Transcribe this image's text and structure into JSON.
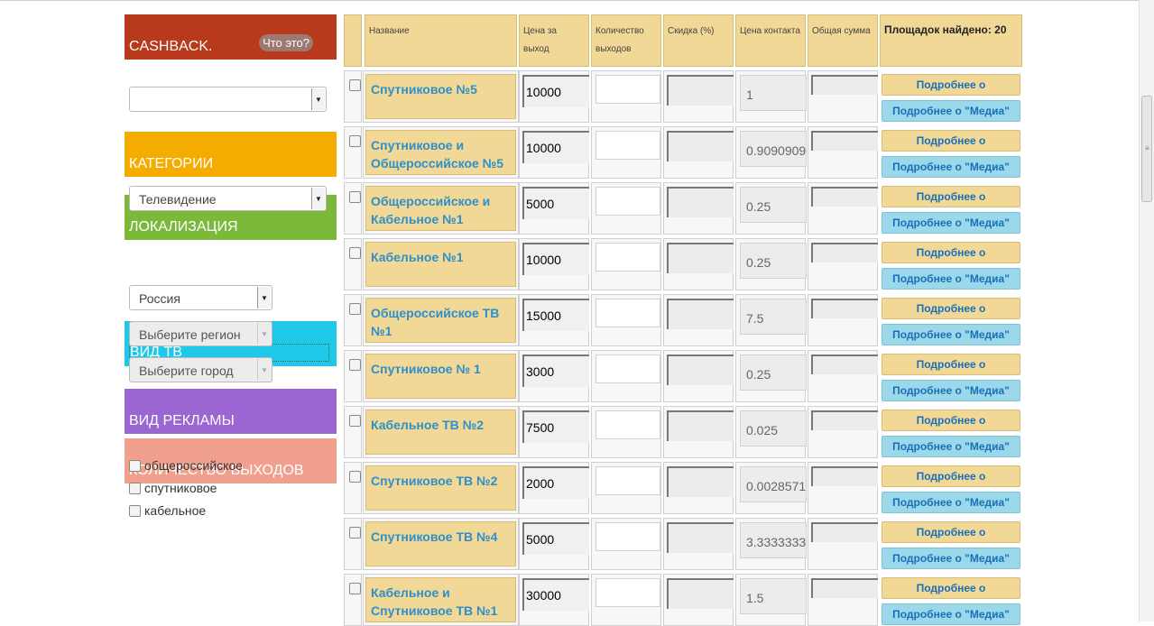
{
  "sidebar": {
    "cashback": {
      "title": "CASHBACK.",
      "what_btn": "Что это?"
    },
    "cashback_select": "",
    "categories": {
      "title": "КАТЕГОРИИ",
      "selected": "Телевидение"
    },
    "localization": {
      "title": "ЛОКАЛИЗАЦИЯ",
      "country": "Россия",
      "region": "Выберите регион",
      "city": "Выберите город"
    },
    "tv_type": {
      "title": "ВИД ТВ",
      "options": [
        "общероссийское",
        "спутниковое",
        "кабельное"
      ]
    },
    "ad_type": {
      "title": "ВИД РЕКЛАМЫ"
    },
    "count": {
      "title": "КОЛИЧЕСТВО ВЫХОДОВ"
    }
  },
  "table": {
    "headers": {
      "name": "Название",
      "price": "Цена за выход",
      "qty": "Количество выходов",
      "discount": "Скидка (%)",
      "contact": "Цена контакта",
      "total": "Общая сумма",
      "found": "Площадок найдено: 20"
    },
    "btn_platform": "Подробнее о \"Площадке\"",
    "btn_media": "Подробнее о \"Медиа\"",
    "rows": [
      {
        "name": "Спутниковое №5",
        "price": "10000",
        "qty": "",
        "discount": "",
        "contact": "1",
        "total": ""
      },
      {
        "name": "Спутниковое и Общероссийское №5",
        "price": "10000",
        "qty": "",
        "discount": "",
        "contact": "0.9090909",
        "total": ""
      },
      {
        "name": "Общероссийское и Кабельное №1",
        "price": "5000",
        "qty": "",
        "discount": "",
        "contact": "0.25",
        "total": ""
      },
      {
        "name": "Кабельное №1",
        "price": "10000",
        "qty": "",
        "discount": "",
        "contact": "0.25",
        "total": ""
      },
      {
        "name": "Общероссийское ТВ №1",
        "price": "15000",
        "qty": "",
        "discount": "",
        "contact": "7.5",
        "total": ""
      },
      {
        "name": "Спутниковое № 1",
        "price": "3000",
        "qty": "",
        "discount": "",
        "contact": "0.25",
        "total": ""
      },
      {
        "name": "Кабельное ТВ №2",
        "price": "7500",
        "qty": "",
        "discount": "",
        "contact": "0.025",
        "total": ""
      },
      {
        "name": "Спутниковое ТВ №2",
        "price": "2000",
        "qty": "",
        "discount": "",
        "contact": "0.0028571",
        "total": ""
      },
      {
        "name": "Спутниковое ТВ №4",
        "price": "5000",
        "qty": "",
        "discount": "",
        "contact": "3.3333333",
        "total": ""
      },
      {
        "name": "Кабельное и Спутниковое ТВ №1",
        "price": "30000",
        "qty": "",
        "discount": "",
        "contact": "1.5",
        "total": ""
      }
    ]
  },
  "icons": {
    "dropdown": "chevron-down-icon",
    "scroll_grip": "grip-icon"
  }
}
